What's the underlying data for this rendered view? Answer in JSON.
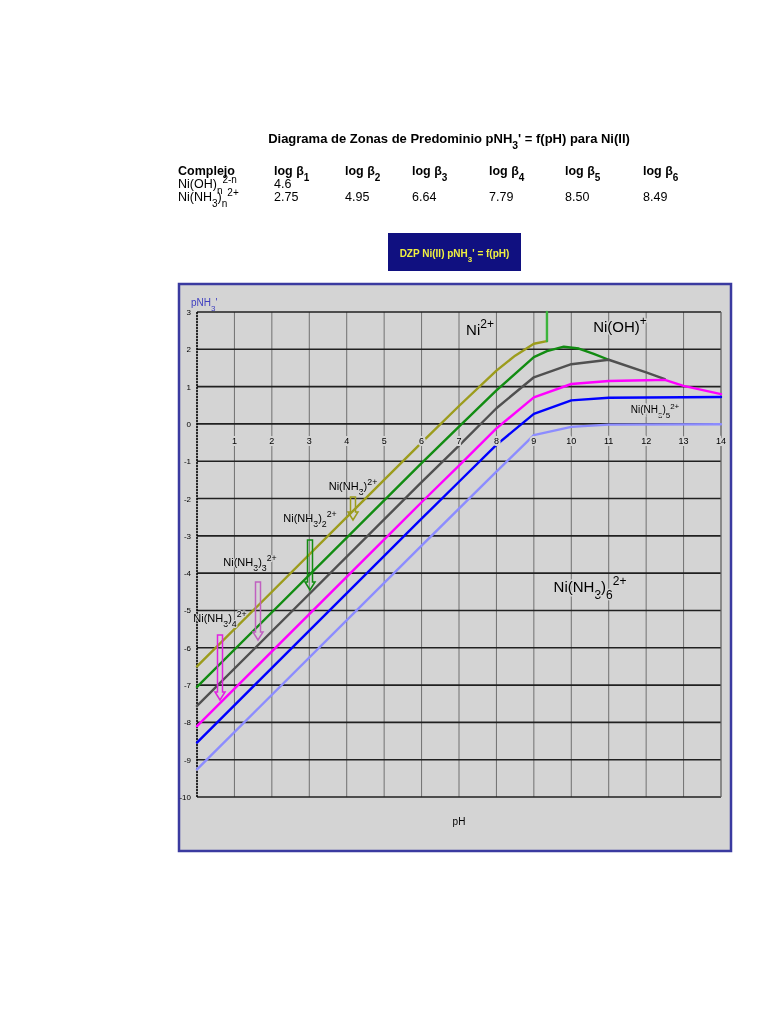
{
  "chart_data": {
    "type": "line",
    "title": "Diagrama de Zonas de Predominio   pNH$_{3}$' = f(pH) para Ni(II)",
    "subtitle": "DZP Ni(II) pNH$_{3}$' = f(pH)",
    "xlabel": "pH",
    "ylabel": "pNH$_{3}$'",
    "xlim": [
      0,
      14
    ],
    "ylim": [
      -10,
      3
    ],
    "xticks": [
      {
        "value": 0,
        "label": null
      },
      1,
      2,
      3,
      4,
      5,
      6,
      7,
      8,
      9,
      10,
      11,
      12,
      13,
      14
    ],
    "yticks": [
      -10,
      -9,
      -8,
      -7,
      -6,
      -5,
      -4,
      -3,
      -2,
      -1,
      0,
      1,
      2,
      3
    ],
    "grid": true,
    "marker": "none",
    "line_style": "solid",
    "series": [
      {
        "color": "#9c9c1c",
        "x": [
          0,
          5,
          6,
          7,
          8,
          8.5,
          9,
          9.35
        ],
        "values": [
          -6.5,
          -1.5,
          -0.5,
          0.48,
          1.43,
          1.83,
          2.15,
          2.22
        ]
      },
      {
        "color": "#3cb43c",
        "x": [
          9.35,
          9.35
        ],
        "values": [
          2.22,
          3
        ]
      },
      {
        "color": "#128c12",
        "x": [
          0,
          6,
          7,
          8,
          9,
          9.35,
          9.8,
          10.2,
          10.6,
          11
        ],
        "values": [
          -7.05,
          -1.05,
          -0.07,
          0.9,
          1.79,
          1.95,
          2.07,
          2.02,
          1.88,
          1.72
        ]
      },
      {
        "color": "#505050",
        "x": [
          0,
          6,
          7,
          8,
          9,
          10,
          11,
          12,
          12.5
        ],
        "values": [
          -7.56,
          -1.56,
          -0.58,
          0.42,
          1.25,
          1.6,
          1.72,
          1.38,
          1.2
        ]
      },
      {
        "color": "#ff00ff",
        "x": [
          0,
          6,
          7,
          8,
          9,
          10,
          11,
          12,
          12.5,
          13,
          14
        ],
        "values": [
          -8.1,
          -2.1,
          -1.12,
          -0.12,
          0.71,
          1.07,
          1.15,
          1.17,
          1.18,
          1.02,
          0.8
        ]
      },
      {
        "color": "#0000ff",
        "x": [
          0,
          6,
          7,
          8,
          9,
          10,
          11,
          14
        ],
        "values": [
          -8.54,
          -2.54,
          -1.55,
          -0.56,
          0.27,
          0.63,
          0.7,
          0.72
        ]
      },
      {
        "color": "#8c8cff",
        "x": [
          0,
          6,
          7,
          8,
          9,
          10,
          11,
          14
        ],
        "values": [
          -9.26,
          -3.26,
          -2.27,
          -1.28,
          -0.3,
          -0.08,
          -0.02,
          -0.01
        ]
      }
    ],
    "annotations": [
      "Ni(NH$_{3}$)$^{2+}$",
      "Ni(NH$_{3}$)$_{2}$$^{2+}$",
      "Ni(NH$_{3}$)$_{3}$$^{2+}$",
      "Ni(NH$_{3}$)$_{4}$$^{2+}$",
      "Ni$^{2+}$",
      "Ni(OH)$^{+}$",
      "Ni(NH$_{3}$)$_{5}$$^{2+}$",
      "Ni(NH$_{3}$)$_{6}$$^{2+}$",
      "Complejo\tlog β$_{1}$\tlog β$_{2}$\tlog β$_{3}$\tlog β$_{4}$\tlog β$_{5}$\tlog β$_{6}$",
      "Ni(OH)$_{n}$$^{2-n}$\t4.6",
      "Ni(NH$_{3}$)$_{n}$$^{2+}$\t2.75\t4.95\t6.64\t7.79\t8.50\t8.49"
    ]
  }
}
